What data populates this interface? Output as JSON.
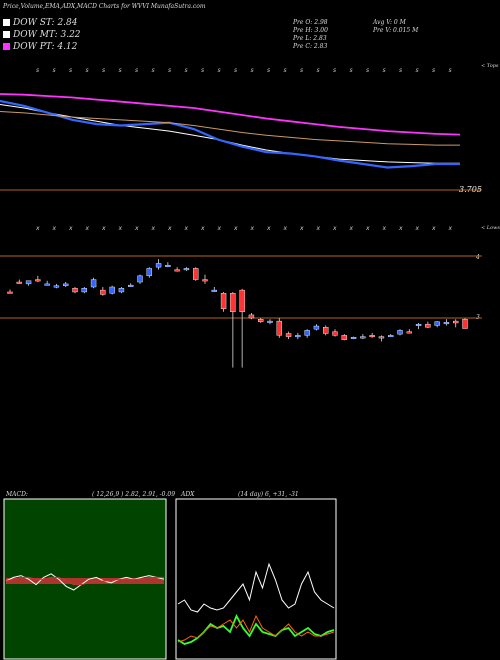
{
  "header": {
    "title": "Price,Volume,EMA,ADX,MACD Charts for WVVI MunafaSutra.com",
    "stats": [
      {
        "k": "Pre O:",
        "v": "2.98"
      },
      {
        "k": "Pre H:",
        "v": "3.00"
      },
      {
        "k": "Pre L:",
        "v": "2.83"
      },
      {
        "k": "Pre C:",
        "v": "2.83"
      },
      {
        "k": "Avg V:",
        "v": "0 M"
      },
      {
        "k": "Pre V:",
        "v": "0.015 M"
      }
    ]
  },
  "legend": [
    {
      "label": "DOW ST: 2.84",
      "color": "#ffffff"
    },
    {
      "label": "DOW MT: 3.22",
      "color": "#ffffff"
    },
    {
      "label": "DOW PT: 4.12",
      "color": "#ff33ff"
    }
  ],
  "chart_data": [
    {
      "type": "line",
      "name": "ema-panel",
      "title": "",
      "corner_label": "< Tops",
      "bottom_label": "< Lows",
      "price_label": "3.705",
      "series": [
        {
          "name": "",
          "color": "#ff33ff",
          "values": [
            4.55,
            4.54,
            4.52,
            4.5,
            4.47,
            4.44,
            4.41,
            4.38,
            4.35,
            4.3,
            4.25,
            4.2,
            4.16,
            4.12,
            4.08,
            4.05,
            4.02,
            4.0,
            3.98,
            3.97
          ]
        },
        {
          "name": "",
          "color": "#ffffff",
          "values": [
            4.4,
            4.35,
            4.28,
            4.22,
            4.16,
            4.1,
            4.06,
            4.02,
            3.96,
            3.9,
            3.82,
            3.75,
            3.7,
            3.66,
            3.62,
            3.6,
            3.58,
            3.57,
            3.56,
            3.56
          ]
        },
        {
          "name": "",
          "color": "#3366ff",
          "values": [
            4.45,
            4.38,
            4.28,
            4.18,
            4.12,
            4.1,
            4.12,
            4.14,
            4.05,
            3.9,
            3.8,
            3.72,
            3.7,
            3.66,
            3.6,
            3.55,
            3.5,
            3.52,
            3.55,
            3.55
          ]
        },
        {
          "name": "",
          "color": "#cc9966",
          "values": [
            4.3,
            4.28,
            4.25,
            4.22,
            4.2,
            4.18,
            4.16,
            4.14,
            4.1,
            4.05,
            4.0,
            3.96,
            3.93,
            3.9,
            3.88,
            3.86,
            3.84,
            3.83,
            3.82,
            3.82
          ]
        }
      ]
    },
    {
      "type": "candlestick",
      "name": "price-panel",
      "ylabels": [
        "4",
        "3"
      ],
      "hlines": [
        4.0,
        3.0
      ],
      "candles": [
        {
          "o": 3.42,
          "h": 3.46,
          "l": 3.4,
          "c": 3.4
        },
        {
          "o": 3.58,
          "h": 3.62,
          "l": 3.55,
          "c": 3.57
        },
        {
          "o": 3.55,
          "h": 3.6,
          "l": 3.52,
          "c": 3.6
        },
        {
          "o": 3.62,
          "h": 3.68,
          "l": 3.58,
          "c": 3.6
        },
        {
          "o": 3.55,
          "h": 3.6,
          "l": 3.53,
          "c": 3.55
        },
        {
          "o": 3.5,
          "h": 3.55,
          "l": 3.48,
          "c": 3.52
        },
        {
          "o": 3.52,
          "h": 3.58,
          "l": 3.5,
          "c": 3.55
        },
        {
          "o": 3.48,
          "h": 3.5,
          "l": 3.4,
          "c": 3.42
        },
        {
          "o": 3.42,
          "h": 3.5,
          "l": 3.4,
          "c": 3.48
        },
        {
          "o": 3.5,
          "h": 3.65,
          "l": 3.48,
          "c": 3.62
        },
        {
          "o": 3.45,
          "h": 3.5,
          "l": 3.36,
          "c": 3.38
        },
        {
          "o": 3.4,
          "h": 3.52,
          "l": 3.38,
          "c": 3.5
        },
        {
          "o": 3.42,
          "h": 3.5,
          "l": 3.4,
          "c": 3.48
        },
        {
          "o": 3.52,
          "h": 3.56,
          "l": 3.5,
          "c": 3.53
        },
        {
          "o": 3.58,
          "h": 3.7,
          "l": 3.55,
          "c": 3.68
        },
        {
          "o": 3.68,
          "h": 3.82,
          "l": 3.65,
          "c": 3.8
        },
        {
          "o": 3.82,
          "h": 3.95,
          "l": 3.78,
          "c": 3.88
        },
        {
          "o": 3.85,
          "h": 3.9,
          "l": 3.82,
          "c": 3.85
        },
        {
          "o": 3.78,
          "h": 3.82,
          "l": 3.75,
          "c": 3.76
        },
        {
          "o": 3.78,
          "h": 3.82,
          "l": 3.76,
          "c": 3.8
        },
        {
          "o": 3.8,
          "h": 3.82,
          "l": 3.6,
          "c": 3.62
        },
        {
          "o": 3.62,
          "h": 3.7,
          "l": 3.55,
          "c": 3.6
        },
        {
          "o": 3.45,
          "h": 3.5,
          "l": 3.42,
          "c": 3.45
        },
        {
          "o": 3.4,
          "h": 3.42,
          "l": 3.1,
          "c": 3.15
        },
        {
          "o": 3.4,
          "h": 3.42,
          "l": 2.2,
          "c": 3.1
        },
        {
          "o": 3.45,
          "h": 3.47,
          "l": 2.2,
          "c": 3.1
        },
        {
          "o": 3.05,
          "h": 3.08,
          "l": 2.98,
          "c": 3.0
        },
        {
          "o": 2.98,
          "h": 3.0,
          "l": 2.92,
          "c": 2.94
        },
        {
          "o": 2.95,
          "h": 2.98,
          "l": 2.9,
          "c": 2.95
        },
        {
          "o": 2.95,
          "h": 3.0,
          "l": 2.68,
          "c": 2.72
        },
        {
          "o": 2.75,
          "h": 2.78,
          "l": 2.66,
          "c": 2.7
        },
        {
          "o": 2.7,
          "h": 2.76,
          "l": 2.66,
          "c": 2.72
        },
        {
          "o": 2.72,
          "h": 2.82,
          "l": 2.68,
          "c": 2.8
        },
        {
          "o": 2.82,
          "h": 2.9,
          "l": 2.8,
          "c": 2.87
        },
        {
          "o": 2.85,
          "h": 2.88,
          "l": 2.72,
          "c": 2.75
        },
        {
          "o": 2.78,
          "h": 2.82,
          "l": 2.7,
          "c": 2.72
        },
        {
          "o": 2.72,
          "h": 2.74,
          "l": 2.64,
          "c": 2.65
        },
        {
          "o": 2.68,
          "h": 2.7,
          "l": 2.66,
          "c": 2.69
        },
        {
          "o": 2.7,
          "h": 2.74,
          "l": 2.66,
          "c": 2.7
        },
        {
          "o": 2.72,
          "h": 2.76,
          "l": 2.68,
          "c": 2.7
        },
        {
          "o": 2.7,
          "h": 2.72,
          "l": 2.62,
          "c": 2.68
        },
        {
          "o": 2.72,
          "h": 2.74,
          "l": 2.7,
          "c": 2.72
        },
        {
          "o": 2.74,
          "h": 2.82,
          "l": 2.72,
          "c": 2.8
        },
        {
          "o": 2.78,
          "h": 2.82,
          "l": 2.75,
          "c": 2.76
        },
        {
          "o": 2.9,
          "h": 2.92,
          "l": 2.82,
          "c": 2.9
        },
        {
          "o": 2.9,
          "h": 2.94,
          "l": 2.84,
          "c": 2.85
        },
        {
          "o": 2.88,
          "h": 2.95,
          "l": 2.85,
          "c": 2.94
        },
        {
          "o": 2.92,
          "h": 2.98,
          "l": 2.88,
          "c": 2.93
        },
        {
          "o": 2.95,
          "h": 2.98,
          "l": 2.85,
          "c": 2.92
        },
        {
          "o": 2.98,
          "h": 3.0,
          "l": 2.83,
          "c": 2.83
        }
      ]
    },
    {
      "type": "line",
      "name": "macd-panel",
      "label": "MACD:",
      "params": "( 12,26,9 ) 2.82, 2.91, -0.09",
      "series": [
        {
          "name": "",
          "color": "#ffffff",
          "values": [
            0.0,
            0.02,
            0.03,
            0.01,
            -0.02,
            0.02,
            0.04,
            0.01,
            -0.03,
            -0.05,
            -0.02,
            0.01,
            0.02,
            0.0,
            -0.01,
            0.01,
            0.02,
            0.01,
            0.02,
            0.03,
            0.02,
            0.01
          ]
        },
        {
          "name": "",
          "color": "#cc3333",
          "values": [
            0.0,
            0.01,
            0.02,
            0.02,
            0.01,
            0.01,
            0.02,
            0.02,
            0.0,
            -0.02,
            -0.02,
            -0.01,
            0.0,
            0.0,
            0.0,
            0.01,
            0.01,
            0.01,
            0.01,
            0.02,
            0.02,
            0.02
          ]
        }
      ]
    },
    {
      "type": "line",
      "name": "adx-panel",
      "label": "ADX",
      "params": "(14 day) 6, +31, -31",
      "series": [
        {
          "name": "",
          "color": "#ffffff",
          "values": [
            28,
            30,
            25,
            24,
            28,
            26,
            25,
            26,
            30,
            34,
            38,
            30,
            44,
            36,
            48,
            40,
            30,
            26,
            28,
            38,
            44,
            34,
            30,
            28,
            26
          ]
        },
        {
          "name": "",
          "color": "#33ff33",
          "values": [
            10,
            8,
            9,
            11,
            14,
            18,
            16,
            17,
            14,
            22,
            16,
            12,
            18,
            14,
            13,
            12,
            15,
            16,
            12,
            14,
            16,
            13,
            12,
            14,
            15
          ]
        },
        {
          "name": "",
          "color": "#ff6600",
          "values": [
            9,
            10,
            12,
            11,
            14,
            17,
            16,
            18,
            20,
            16,
            20,
            14,
            22,
            16,
            14,
            12,
            15,
            18,
            14,
            12,
            14,
            12,
            12,
            13,
            14
          ]
        }
      ]
    }
  ]
}
